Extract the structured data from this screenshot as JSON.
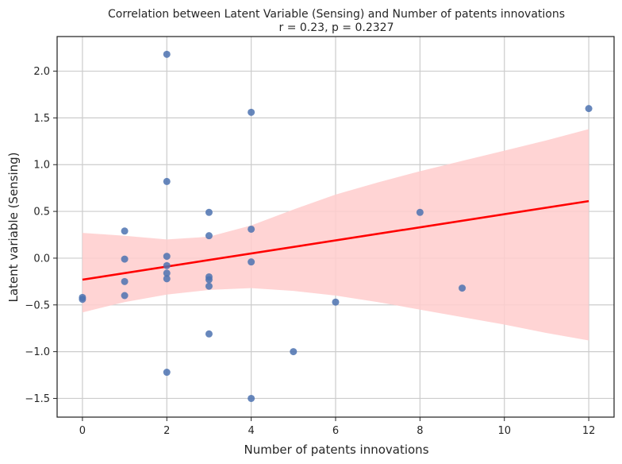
{
  "chart_data": {
    "type": "scatter",
    "title": "Correlation between Latent Variable (Sensing) and Number of patents innovations",
    "subtitle": "r = 0.23, p = 0.2327",
    "xlabel": "Number of patents innovations",
    "ylabel": "Latent variable (Sensing)",
    "xlim": [
      -0.6,
      12.6
    ],
    "ylim": [
      -1.7,
      2.37
    ],
    "xticks": [
      0,
      2,
      4,
      6,
      8,
      10,
      12
    ],
    "yticks": [
      -1.5,
      -1.0,
      -0.5,
      0.0,
      0.5,
      1.0,
      1.5,
      2.0
    ],
    "ytick_labels": [
      "−1.5",
      "−1.0",
      "−0.5",
      "0.0",
      "0.5",
      "1.0",
      "1.5",
      "2.0"
    ],
    "grid": true,
    "series": [
      {
        "kind": "points",
        "color": "#4c72b0",
        "points": [
          [
            0,
            -0.42
          ],
          [
            0,
            -0.44
          ],
          [
            1,
            0.29
          ],
          [
            1,
            -0.01
          ],
          [
            1,
            -0.25
          ],
          [
            1,
            -0.4
          ],
          [
            2,
            2.18
          ],
          [
            2,
            0.82
          ],
          [
            2,
            0.02
          ],
          [
            2,
            -0.08
          ],
          [
            2,
            -0.16
          ],
          [
            2,
            -0.22
          ],
          [
            2,
            -1.22
          ],
          [
            3,
            0.49
          ],
          [
            3,
            0.24
          ],
          [
            3,
            -0.2
          ],
          [
            3,
            -0.23
          ],
          [
            3,
            -0.3
          ],
          [
            3,
            -0.81
          ],
          [
            4,
            1.56
          ],
          [
            4,
            0.31
          ],
          [
            4,
            -0.04
          ],
          [
            4,
            -1.5
          ],
          [
            5,
            -1.0
          ],
          [
            6,
            -0.47
          ],
          [
            8,
            0.49
          ],
          [
            9,
            -0.32
          ],
          [
            12,
            1.6
          ]
        ]
      },
      {
        "kind": "regression",
        "color": "#ff0000",
        "x": [
          0,
          12
        ],
        "y": [
          -0.23,
          0.61
        ]
      },
      {
        "kind": "confidence-band",
        "color": "#ffcccc",
        "x": [
          0,
          1,
          2,
          3,
          4,
          5,
          6,
          7,
          8,
          9,
          10,
          11,
          12
        ],
        "upper": [
          0.27,
          0.24,
          0.2,
          0.23,
          0.35,
          0.52,
          0.68,
          0.81,
          0.93,
          1.04,
          1.15,
          1.26,
          1.38
        ],
        "lower": [
          -0.58,
          -0.47,
          -0.39,
          -0.34,
          -0.32,
          -0.35,
          -0.4,
          -0.47,
          -0.55,
          -0.63,
          -0.71,
          -0.8,
          -0.88
        ]
      }
    ]
  }
}
